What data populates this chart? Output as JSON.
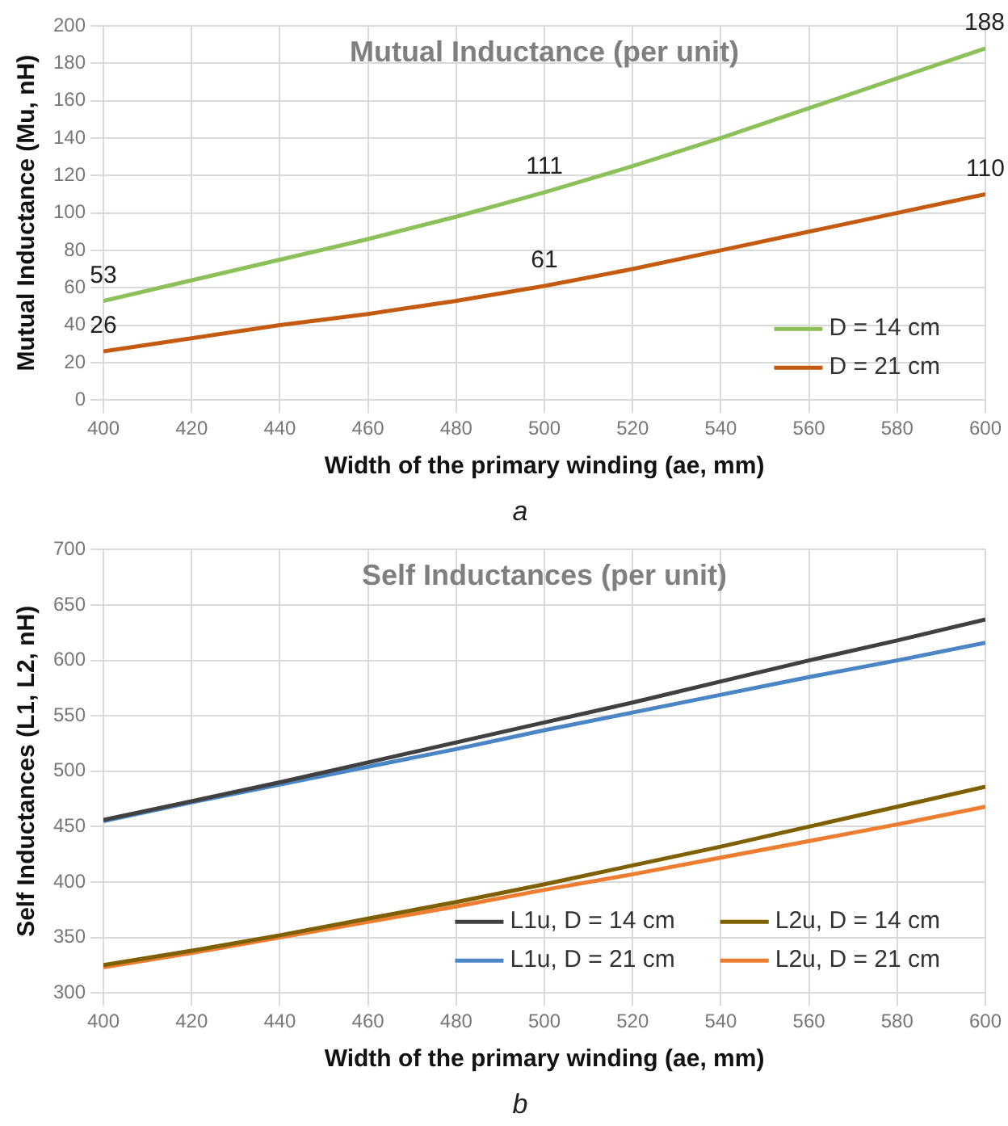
{
  "chart_data": [
    {
      "type": "line",
      "title": "Mutual Inductance (per unit)",
      "xlabel": "Width of the primary winding (ae, mm)",
      "ylabel": "Mutual Inductance (Mu, nH)",
      "x": [
        400,
        420,
        440,
        460,
        480,
        500,
        520,
        540,
        560,
        580,
        600
      ],
      "xlim": [
        400,
        600
      ],
      "xticks": [
        400,
        420,
        440,
        460,
        480,
        500,
        520,
        540,
        560,
        580,
        600
      ],
      "ylim": [
        0,
        200
      ],
      "yticks": [
        0,
        20,
        40,
        60,
        80,
        100,
        120,
        140,
        160,
        180,
        200
      ],
      "grid": true,
      "legend": "bottom right",
      "marker": "none",
      "line_style": "solid",
      "annotations": [
        "a"
      ],
      "series": [
        {
          "name": "D = 14 cm",
          "color": "#8cc15a",
          "values": [
            53,
            64,
            75,
            86,
            98,
            111,
            125,
            140,
            156,
            172,
            188
          ],
          "value_labels": [
            "53",
            null,
            null,
            null,
            null,
            "111",
            null,
            null,
            null,
            null,
            "188"
          ]
        },
        {
          "name": "D = 21 cm",
          "color": "#c55a11",
          "values": [
            26,
            33,
            40,
            46,
            53,
            61,
            70,
            80,
            90,
            100,
            110
          ],
          "value_labels": [
            "26",
            null,
            null,
            null,
            null,
            "61",
            null,
            null,
            null,
            null,
            "110"
          ]
        }
      ]
    },
    {
      "type": "line",
      "title": "Self Inductances (per unit)",
      "xlabel": "Width of the primary winding (ae, mm)",
      "ylabel": "Self Inductances (L1, L2, nH)",
      "x": [
        400,
        420,
        440,
        460,
        480,
        500,
        520,
        540,
        560,
        580,
        600
      ],
      "xlim": [
        400,
        600
      ],
      "xticks": [
        400,
        420,
        440,
        460,
        480,
        500,
        520,
        540,
        560,
        580,
        600
      ],
      "ylim": [
        300,
        700
      ],
      "yticks": [
        300,
        350,
        400,
        450,
        500,
        550,
        600,
        650,
        700
      ],
      "grid": true,
      "legend": "bottom right",
      "marker": "none",
      "line_style": "solid",
      "annotations": [
        "b"
      ],
      "series": [
        {
          "name": "L1u, D = 14 cm",
          "color": "#404040",
          "values": [
            456,
            473,
            490,
            508,
            526,
            544,
            562,
            581,
            600,
            618,
            637
          ]
        },
        {
          "name": "L2u, D = 14 cm",
          "color": "#7f6000",
          "values": [
            325,
            338,
            352,
            367,
            382,
            398,
            415,
            432,
            450,
            468,
            486
          ]
        },
        {
          "name": "L1u, D = 21 cm",
          "color": "#4a86c5",
          "values": [
            455,
            472,
            488,
            504,
            520,
            537,
            553,
            569,
            585,
            600,
            616
          ]
        },
        {
          "name": "L2u, D = 21 cm",
          "color": "#ed7d31",
          "values": [
            323,
            336,
            350,
            364,
            378,
            393,
            407,
            422,
            437,
            452,
            468
          ]
        }
      ]
    }
  ]
}
